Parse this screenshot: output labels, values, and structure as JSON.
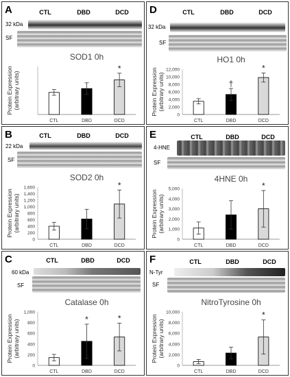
{
  "panels": [
    {
      "letter": "A",
      "groups": [
        "CTL",
        "DBD",
        "DCD"
      ],
      "kda": "32 kDa",
      "blot_label": "",
      "sf": "SF",
      "chart_data": {
        "type": "bar",
        "title": "SOD1 0h",
        "ylabel": "Protein Expression (arbitrary units)",
        "categories": [
          "CTL",
          "DBD",
          "DCD"
        ],
        "values": [
          1.15,
          1.35,
          1.8
        ],
        "errors": [
          0.15,
          0.3,
          0.35
        ],
        "marks": [
          "",
          "",
          "*"
        ],
        "ylim": [
          0,
          2.5
        ],
        "yticks": [],
        "ytick_labels": [],
        "bar_colors": [
          "#ffffff",
          "#000000",
          "#d9d9d9"
        ],
        "grid": false,
        "legend": "none"
      }
    },
    {
      "letter": "D",
      "groups": [
        "CTL",
        "DBD",
        "DCD"
      ],
      "kda": "32 kDa",
      "blot_label": "",
      "sf": "SF",
      "chart_data": {
        "type": "bar",
        "title": "HO1 0h",
        "ylabel": "Protein Expression (arbitrary units)",
        "categories": [
          "CTL",
          "DBD",
          "DCD"
        ],
        "values": [
          3500,
          5300,
          9800
        ],
        "errors": [
          700,
          1600,
          1200
        ],
        "marks": [
          "",
          "†",
          "*"
        ],
        "ylim": [
          0,
          12000
        ],
        "yticks": [
          0,
          2000,
          4000,
          6000,
          8000,
          10000,
          12000
        ],
        "ytick_labels": [
          "0",
          "2,000",
          "4,000",
          "6,000",
          "8,000",
          "10,000",
          "12,000"
        ],
        "bar_colors": [
          "#ffffff",
          "#000000",
          "#d9d9d9"
        ],
        "grid": false,
        "legend": "none"
      }
    },
    {
      "letter": "B",
      "groups": [
        "CTL",
        "DBD",
        "DCD"
      ],
      "kda": "22 kDa",
      "blot_label": "",
      "sf": "SF",
      "chart_data": {
        "type": "bar",
        "title": "SOD2 0h",
        "ylabel": "Protein Expression (arbitrary units)",
        "categories": [
          "CTL",
          "DBD",
          "DCD"
        ],
        "values": [
          400,
          620,
          1080
        ],
        "errors": [
          120,
          300,
          430
        ],
        "marks": [
          "",
          "",
          "*"
        ],
        "ylim": [
          0,
          1600
        ],
        "yticks": [
          0,
          200,
          400,
          600,
          800,
          1000,
          1200,
          1400,
          1600
        ],
        "ytick_labels": [
          "0",
          "200",
          "400",
          "600",
          "800",
          "1,000",
          "1,200",
          "1,400",
          "1,600"
        ],
        "bar_colors": [
          "#ffffff",
          "#000000",
          "#d9d9d9"
        ],
        "grid": false,
        "legend": "none"
      }
    },
    {
      "letter": "E",
      "groups": [
        "CTL",
        "DBD",
        "DCD"
      ],
      "kda": "",
      "blot_label": "4-HNE",
      "sf": "SF",
      "chart_data": {
        "type": "bar",
        "title": "4HNE 0h",
        "ylabel": "Protein Expression (arbitrary units)",
        "categories": [
          "CTL",
          "DBD",
          "DCD"
        ],
        "values": [
          1100,
          2400,
          3000
        ],
        "errors": [
          600,
          1400,
          1800
        ],
        "marks": [
          "",
          "",
          "*"
        ],
        "ylim": [
          0,
          5000
        ],
        "yticks": [
          0,
          1000,
          2000,
          3000,
          4000,
          5000
        ],
        "ytick_labels": [
          "0",
          "1,000",
          "2,000",
          "3,000",
          "4,000",
          "5,000"
        ],
        "bar_colors": [
          "#ffffff",
          "#000000",
          "#d9d9d9"
        ],
        "grid": false,
        "legend": "none"
      }
    },
    {
      "letter": "C",
      "groups": [
        "CTL",
        "DBD",
        "DCD"
      ],
      "kda": "60 kDa",
      "blot_label": "",
      "sf": "SF",
      "chart_data": {
        "type": "bar",
        "title": "Catalase 0h",
        "ylabel": "Protein Expression (arbitrary units)",
        "categories": [
          "CTL",
          "DBD",
          "DCD"
        ],
        "values": [
          145,
          450,
          530
        ],
        "errors": [
          60,
          320,
          260
        ],
        "marks": [
          "",
          "*",
          "*"
        ],
        "ylim": [
          0,
          1000
        ],
        "yticks": [
          0,
          200,
          400,
          600,
          800,
          1000
        ],
        "ytick_labels": [
          "0",
          "200",
          "400",
          "600",
          "800",
          "1,000"
        ],
        "bar_colors": [
          "#ffffff",
          "#000000",
          "#d9d9d9"
        ],
        "grid": false,
        "legend": "none"
      }
    },
    {
      "letter": "F",
      "groups": [
        "CTL",
        "DBD",
        "DCD"
      ],
      "kda": "",
      "blot_label": "N-Tyr",
      "sf": "SF",
      "chart_data": {
        "type": "bar",
        "title": "NitroTyrosine 0h",
        "ylabel": "Protein Expression (arbitrary units)",
        "categories": [
          "CTL",
          "DBD",
          "DCD"
        ],
        "values": [
          700,
          2300,
          5300
        ],
        "errors": [
          400,
          1100,
          3200
        ],
        "marks": [
          "",
          "",
          "*"
        ],
        "ylim": [
          0,
          10000
        ],
        "yticks": [
          0,
          2000,
          4000,
          6000,
          8000,
          10000
        ],
        "ytick_labels": [
          "0",
          "2,000",
          "4,000",
          "6,000",
          "8,000",
          "10,000"
        ],
        "bar_colors": [
          "#ffffff",
          "#000000",
          "#d9d9d9"
        ],
        "grid": false,
        "legend": "none"
      }
    }
  ]
}
